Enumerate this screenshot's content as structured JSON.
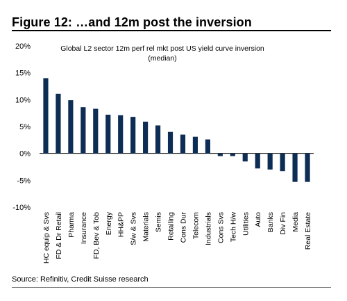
{
  "figure": {
    "title": "Figure 12: …and 12m post the inversion",
    "source": "Source: Refinitiv, Credit Suisse research"
  },
  "chart_data": {
    "type": "bar",
    "title_lines": [
      "Global L2 sector 12m  perf rel mkt post US yield curve inversion",
      "(median)"
    ],
    "xlabel": "",
    "ylabel": "",
    "ylim": [
      -10,
      20
    ],
    "yticks": [
      -10,
      -5,
      0,
      5,
      10,
      15,
      20
    ],
    "ytick_labels": [
      "-10%",
      "-5%",
      "0%",
      "5%",
      "10%",
      "15%",
      "20%"
    ],
    "grid": false,
    "legend": "none",
    "bar_color": "#0d2d55",
    "categories": [
      "HC equip & Svs",
      "FD & Dr Retail",
      "Pharma",
      "Insurance",
      "FD, Bev & Tob",
      "Energy",
      "HH&PP",
      "S/w & Svs",
      "Materials",
      "Semis",
      "Retailing",
      "Cons Dur",
      "Telecom",
      "Industrials",
      "Cons Svs",
      "Tech H/w",
      "Utilities",
      "Auto",
      "Banks",
      "Div Fin",
      "Media",
      "Real Estate"
    ],
    "values": [
      14.0,
      11.1,
      9.9,
      8.6,
      8.3,
      7.2,
      7.1,
      6.8,
      5.9,
      5.2,
      4.0,
      3.5,
      3.1,
      2.6,
      -0.5,
      -0.5,
      -1.5,
      -2.8,
      -3.0,
      -3.3,
      -5.3,
      -5.3
    ]
  }
}
